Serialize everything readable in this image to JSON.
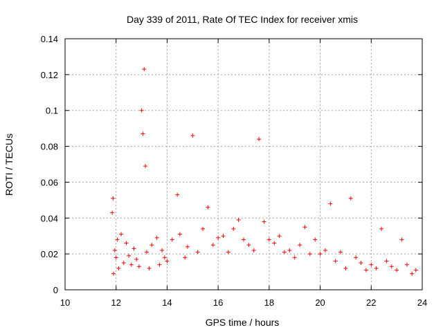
{
  "chart_data": {
    "type": "scatter",
    "title": "Day 339 of 2011, Rate Of TEC Index for receiver xmis",
    "xlabel": "GPS time / hours",
    "ylabel": "ROTI / TECUs",
    "xlim": [
      10,
      24
    ],
    "ylim": [
      0,
      0.14
    ],
    "xticks": [
      10,
      12,
      14,
      16,
      18,
      20,
      22,
      24
    ],
    "yticks": [
      0,
      0.02,
      0.04,
      0.06,
      0.08,
      0.1,
      0.12,
      0.14
    ],
    "xtick_labels": [
      "10",
      "12",
      "14",
      "16",
      "18",
      "20",
      "22",
      "24"
    ],
    "ytick_labels": [
      "0",
      "0.02",
      "0.04",
      "0.06",
      "0.08",
      "0.1",
      "0.12",
      "0.14"
    ],
    "grid": true,
    "marker": "plus",
    "color": "#ff0000",
    "series": [
      {
        "name": "ROTI",
        "x": [
          11.85,
          11.88,
          11.9,
          11.95,
          12.0,
          12.05,
          12.1,
          12.2,
          12.3,
          12.4,
          12.5,
          12.6,
          12.7,
          12.8,
          12.9,
          13.0,
          13.05,
          13.1,
          13.15,
          13.2,
          13.3,
          13.4,
          13.6,
          13.7,
          13.8,
          13.9,
          14.0,
          14.2,
          14.4,
          14.5,
          14.7,
          14.8,
          15.0,
          15.2,
          15.4,
          15.6,
          15.8,
          16.0,
          16.2,
          16.4,
          16.6,
          16.8,
          17.0,
          17.2,
          17.4,
          17.6,
          17.8,
          18.0,
          18.2,
          18.4,
          18.6,
          18.8,
          19.0,
          19.2,
          19.4,
          19.6,
          19.8,
          20.0,
          20.2,
          20.4,
          20.6,
          20.8,
          21.0,
          21.2,
          21.4,
          21.6,
          21.8,
          22.0,
          22.2,
          22.4,
          22.6,
          22.8,
          23.0,
          23.2,
          23.4,
          23.6,
          23.75
        ],
        "y": [
          0.043,
          0.051,
          0.009,
          0.022,
          0.018,
          0.028,
          0.012,
          0.031,
          0.015,
          0.026,
          0.019,
          0.014,
          0.023,
          0.017,
          0.013,
          0.1,
          0.087,
          0.123,
          0.069,
          0.021,
          0.012,
          0.025,
          0.029,
          0.014,
          0.022,
          0.018,
          0.016,
          0.028,
          0.053,
          0.031,
          0.018,
          0.024,
          0.086,
          0.021,
          0.034,
          0.046,
          0.025,
          0.029,
          0.03,
          0.021,
          0.034,
          0.039,
          0.028,
          0.025,
          0.022,
          0.084,
          0.038,
          0.028,
          0.026,
          0.03,
          0.021,
          0.022,
          0.018,
          0.025,
          0.035,
          0.02,
          0.028,
          0.02,
          0.022,
          0.048,
          0.016,
          0.021,
          0.012,
          0.051,
          0.018,
          0.015,
          0.011,
          0.014,
          0.012,
          0.034,
          0.016,
          0.013,
          0.011,
          0.028,
          0.014,
          0.009,
          0.011
        ]
      }
    ]
  }
}
